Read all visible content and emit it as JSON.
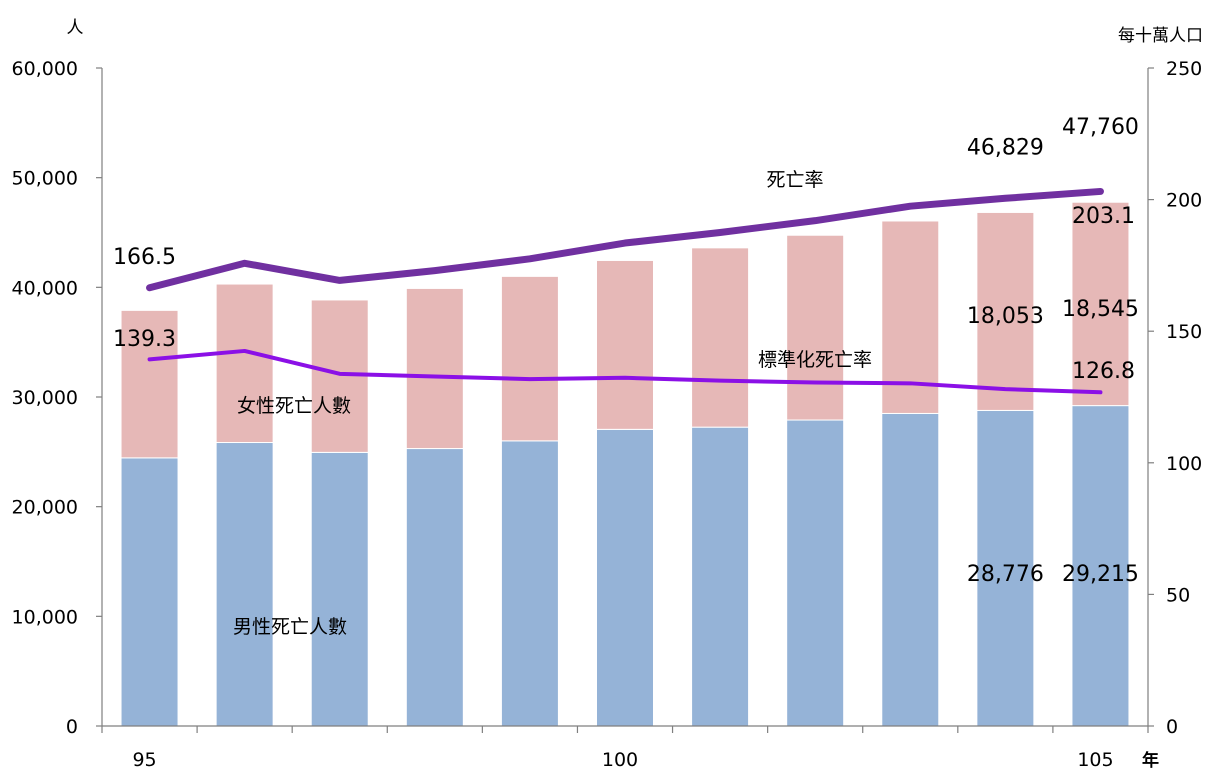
{
  "chart_data": {
    "type": "bar",
    "stacked": true,
    "x": [
      95,
      96,
      97,
      98,
      99,
      100,
      101,
      102,
      103,
      104,
      105
    ],
    "x_tick_labels": [
      "95",
      "100",
      "105"
    ],
    "x_tick_label_values": [
      95,
      100,
      105
    ],
    "x_unit": "年",
    "y_left_unit": "人",
    "y_right_unit": "每十萬人口",
    "y_left_ylim": [
      0,
      60000
    ],
    "y_left_ticks": [
      "0",
      "10,000",
      "20,000",
      "30,000",
      "40,000",
      "50,000",
      "60,000"
    ],
    "y_left_tick_values": [
      0,
      10000,
      20000,
      30000,
      40000,
      50000,
      60000
    ],
    "y_right_ylim": [
      0,
      250
    ],
    "y_right_ticks": [
      "0",
      "50",
      "100",
      "150",
      "200",
      "250"
    ],
    "y_right_tick_values": [
      0,
      50,
      100,
      150,
      200,
      250
    ],
    "grid": false,
    "series": [
      {
        "name": "男性死亡人數",
        "kind": "bar",
        "axis": "left",
        "color": "#95b3d7",
        "values": [
          24450,
          25850,
          24950,
          25300,
          26000,
          27050,
          27250,
          27900,
          28500,
          28776,
          29215
        ]
      },
      {
        "name": "女性死亡人數",
        "kind": "bar",
        "axis": "left",
        "color": "#e6b8b7",
        "values": [
          13450,
          14450,
          13900,
          14600,
          15000,
          15400,
          16350,
          16850,
          17550,
          18053,
          18545
        ]
      },
      {
        "name": "死亡率",
        "kind": "line",
        "axis": "right",
        "color": "#7030a0",
        "values": [
          166.5,
          175.8,
          169.3,
          173.0,
          177.5,
          183.5,
          187.5,
          192.0,
          197.5,
          200.5,
          203.1
        ]
      },
      {
        "name": "標準化死亡率",
        "kind": "line",
        "axis": "right",
        "color": "#8b10e6",
        "values": [
          139.3,
          142.5,
          133.8,
          132.8,
          131.8,
          132.3,
          131.2,
          130.5,
          130.2,
          128.0,
          126.8
        ]
      }
    ],
    "data_labels": [
      {
        "text": "166.5",
        "series": 2,
        "index": 0,
        "color": "#7030a0"
      },
      {
        "text": "203.1",
        "series": 2,
        "index": 10,
        "color": "#7030a0"
      },
      {
        "text": "139.3",
        "series": 3,
        "index": 0,
        "color": "#0000ff"
      },
      {
        "text": "126.8",
        "series": 3,
        "index": 10,
        "color": "#0000ff"
      },
      {
        "text": "46,829",
        "series": "total",
        "index": 9,
        "color": "#000000"
      },
      {
        "text": "47,760",
        "series": "total",
        "index": 10,
        "color": "#000000"
      },
      {
        "text": "18,053",
        "series": 1,
        "index": 9,
        "color": "#000000"
      },
      {
        "text": "18,545",
        "series": 1,
        "index": 10,
        "color": "#000000"
      },
      {
        "text": "28,776",
        "series": 0,
        "index": 9,
        "color": "#000000"
      },
      {
        "text": "29,215",
        "series": 0,
        "index": 10,
        "color": "#000000"
      }
    ]
  }
}
